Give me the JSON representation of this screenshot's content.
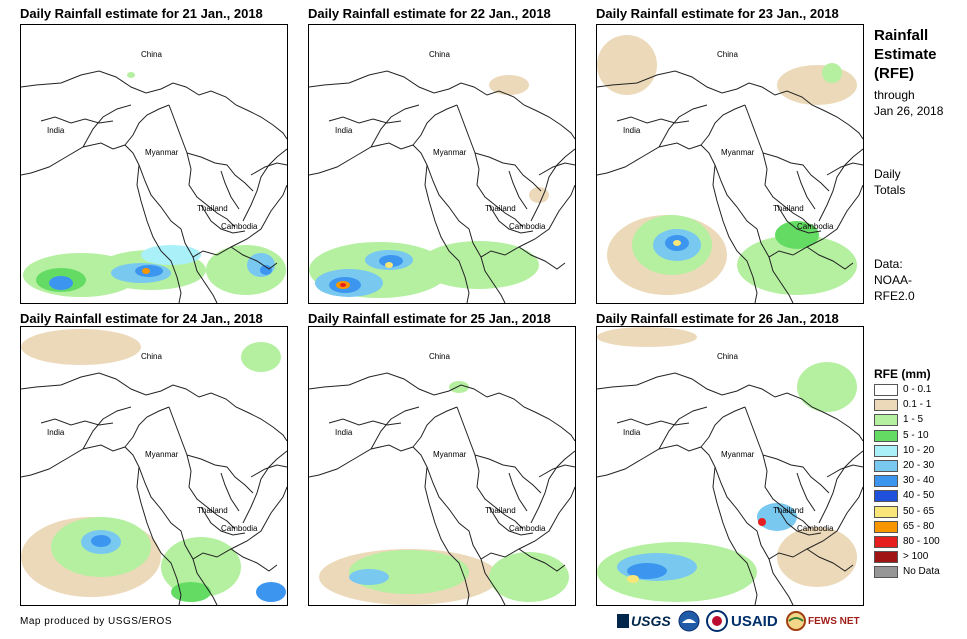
{
  "panels": [
    {
      "title": "Daily Rainfall estimate for 21 Jan., 2018"
    },
    {
      "title": "Daily Rainfall estimate for 22 Jan., 2018"
    },
    {
      "title": "Daily Rainfall estimate for 23 Jan., 2018"
    },
    {
      "title": "Daily Rainfall estimate for 24 Jan., 2018"
    },
    {
      "title": "Daily Rainfall estimate for 25 Jan., 2018"
    },
    {
      "title": "Daily Rainfall estimate for 26 Jan., 2018"
    }
  ],
  "map_labels": {
    "china": "China",
    "india": "India",
    "myanmar": "Myanmar",
    "thailand": "Thailand",
    "cambodia": "Cambodia"
  },
  "side": {
    "title_line1": "Rainfall",
    "title_line2": "Estimate",
    "title_line3": "(RFE)",
    "through": "through",
    "date": "Jan 26, 2018",
    "daily": "Daily",
    "totals": "Totals",
    "data_label": "Data:",
    "source1": "NOAA-",
    "source2": "RFE2.0"
  },
  "legend": {
    "title": "RFE (mm)",
    "items": [
      {
        "label": "0 - 0.1",
        "color": "#ffffff"
      },
      {
        "label": "0.1 - 1",
        "color": "#ecd9b9"
      },
      {
        "label": "1 - 5",
        "color": "#b4f0a0"
      },
      {
        "label": "5 - 10",
        "color": "#64dc64"
      },
      {
        "label": "10 - 20",
        "color": "#aaf0f8"
      },
      {
        "label": "20 - 30",
        "color": "#78c8f0"
      },
      {
        "label": "30 - 40",
        "color": "#3c96f0"
      },
      {
        "label": "40 - 50",
        "color": "#1e50dc"
      },
      {
        "label": "50 - 65",
        "color": "#f8e678"
      },
      {
        "label": "65 - 80",
        "color": "#f89600"
      },
      {
        "label": "80 - 100",
        "color": "#e61e1e"
      },
      {
        "label": "> 100",
        "color": "#a01414"
      },
      {
        "label": "No Data",
        "color": "#969696"
      }
    ]
  },
  "footer": {
    "credit": "Map produced by USGS/EROS",
    "logos": [
      "USGS",
      "NOAA",
      "USAID",
      "FEWS NET"
    ]
  }
}
